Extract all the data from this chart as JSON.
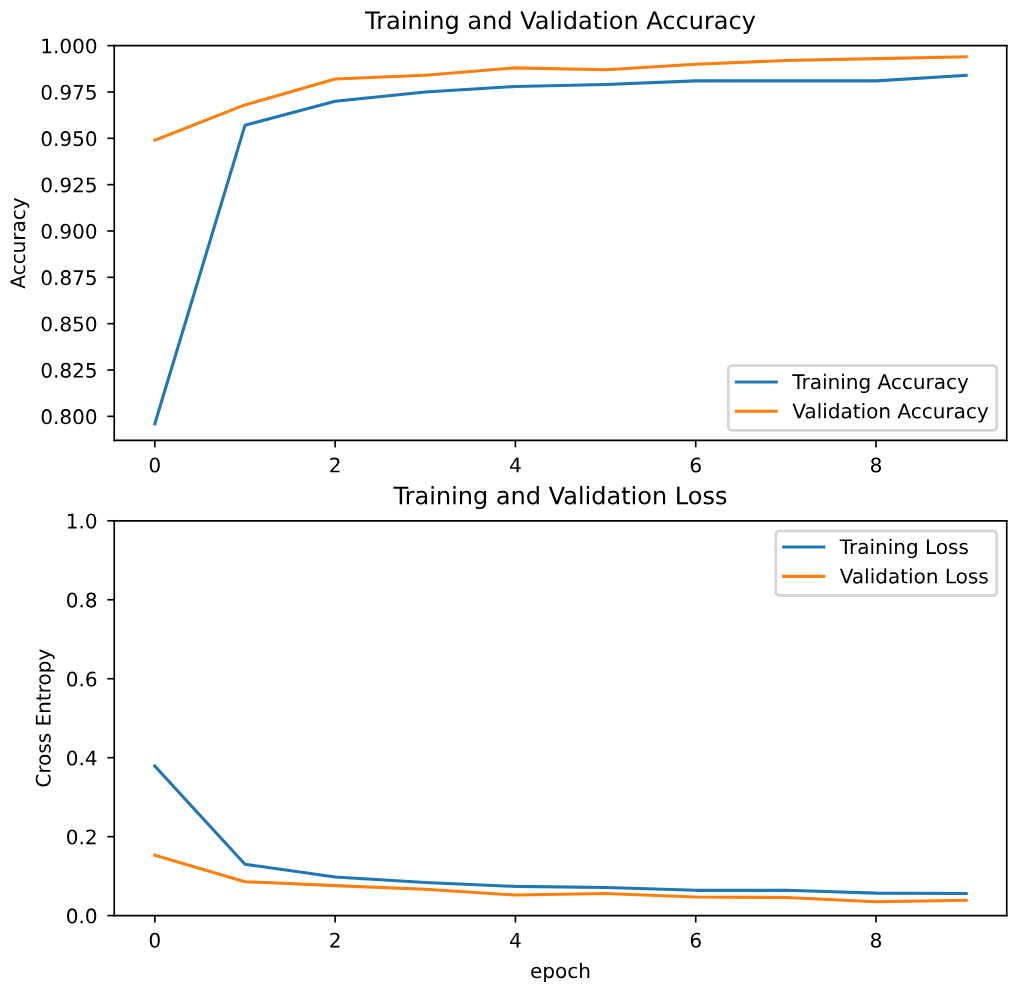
{
  "chart_data": [
    {
      "type": "line",
      "title": "Training and Validation Accuracy",
      "ylabel": "Accuracy",
      "x": [
        0,
        1,
        2,
        3,
        4,
        5,
        6,
        7,
        8,
        9
      ],
      "series": [
        {
          "name": "Training Accuracy",
          "color": "#1f77b4",
          "values": [
            0.796,
            0.957,
            0.97,
            0.975,
            0.978,
            0.979,
            0.981,
            0.981,
            0.981,
            0.984
          ]
        },
        {
          "name": "Validation Accuracy",
          "color": "#ff7f0e",
          "values": [
            0.949,
            0.968,
            0.982,
            0.984,
            0.988,
            0.987,
            0.99,
            0.992,
            0.993,
            0.994
          ]
        }
      ],
      "xlim": [
        -0.45,
        9.45
      ],
      "xticks": [
        0,
        2,
        4,
        6,
        8
      ],
      "ylim": [
        0.787,
        1.0
      ],
      "yticks": [
        {
          "value": 0.8,
          "label": "0.800"
        },
        {
          "value": 0.825,
          "label": "0.825"
        },
        {
          "value": 0.85,
          "label": "0.850"
        },
        {
          "value": 0.875,
          "label": "0.875"
        },
        {
          "value": 0.9,
          "label": "0.900"
        },
        {
          "value": 0.925,
          "label": "0.925"
        },
        {
          "value": 0.95,
          "label": "0.950"
        },
        {
          "value": 0.975,
          "label": "0.975"
        },
        {
          "value": 1.0,
          "label": "1.000"
        }
      ],
      "legend": "lower right",
      "grid": false
    },
    {
      "type": "line",
      "title": "Training and Validation Loss",
      "xlabel": "epoch",
      "ylabel": "Cross Entropy",
      "x": [
        0,
        1,
        2,
        3,
        4,
        5,
        6,
        7,
        8,
        9
      ],
      "series": [
        {
          "name": "Training Loss",
          "color": "#1f77b4",
          "values": [
            0.379,
            0.13,
            0.098,
            0.084,
            0.074,
            0.071,
            0.064,
            0.064,
            0.057,
            0.056
          ]
        },
        {
          "name": "Validation Loss",
          "color": "#ff7f0e",
          "values": [
            0.153,
            0.086,
            0.076,
            0.067,
            0.052,
            0.056,
            0.047,
            0.046,
            0.035,
            0.039
          ]
        }
      ],
      "xlim": [
        -0.45,
        9.45
      ],
      "xticks": [
        0,
        2,
        4,
        6,
        8
      ],
      "ylim": [
        0.0,
        1.0
      ],
      "yticks": [
        {
          "value": 0.0,
          "label": "0.0"
        },
        {
          "value": 0.2,
          "label": "0.2"
        },
        {
          "value": 0.4,
          "label": "0.4"
        },
        {
          "value": 0.6,
          "label": "0.6"
        },
        {
          "value": 0.8,
          "label": "0.8"
        },
        {
          "value": 1.0,
          "label": "1.0"
        }
      ],
      "legend": "upper right",
      "grid": false
    }
  ]
}
